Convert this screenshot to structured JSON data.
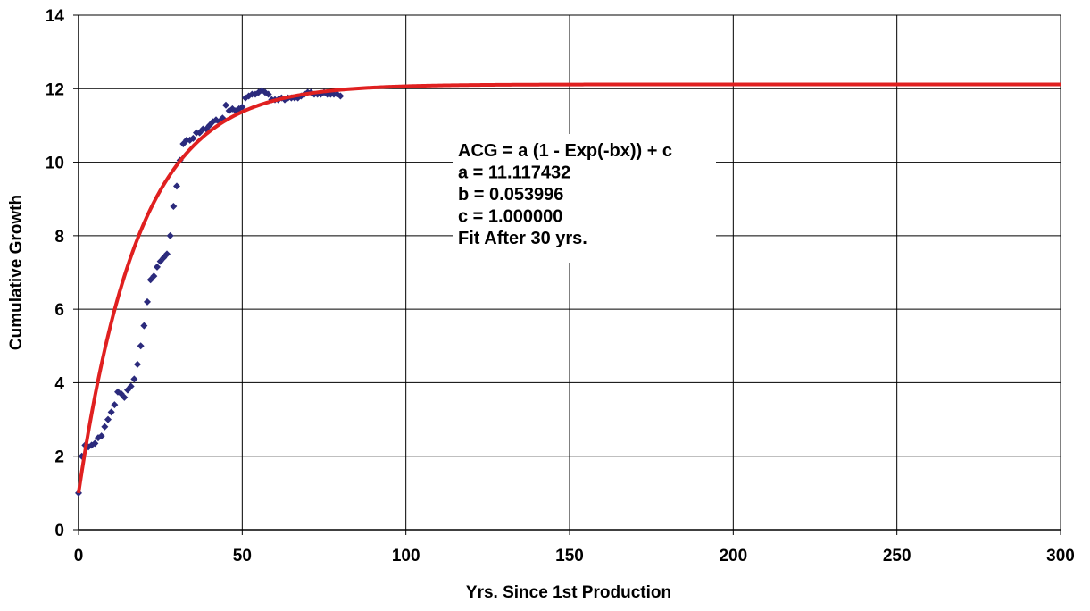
{
  "chart_data": {
    "type": "scatter",
    "xlabel": "Yrs. Since 1st Production",
    "ylabel": "Cumulative Growth",
    "xlim": [
      0,
      300
    ],
    "ylim": [
      0,
      14
    ],
    "xticks": [
      0,
      50,
      100,
      150,
      200,
      250,
      300
    ],
    "yticks": [
      0,
      2,
      4,
      6,
      8,
      10,
      12,
      14
    ],
    "grid": true,
    "annotation": [
      "ACG = a (1 - Exp(-bx)) + c",
      "a = 11.117432",
      "b = 0.053996",
      "c = 1.000000",
      "Fit After 30 yrs."
    ],
    "fit": {
      "a": 11.117432,
      "b": 0.053996,
      "c": 1.0,
      "color": "#e02020"
    },
    "series": [
      {
        "marker_color": "#2b2a7c",
        "x": [
          0,
          1,
          2,
          3,
          4,
          5,
          6,
          7,
          8,
          9,
          10,
          11,
          12,
          13,
          14,
          15,
          16,
          17,
          18,
          19,
          20,
          21,
          22,
          23,
          24,
          25,
          26,
          27,
          28,
          29,
          30,
          31,
          32,
          33,
          34,
          35,
          36,
          37,
          38,
          39,
          40,
          41,
          42,
          43,
          44,
          45,
          46,
          47,
          48,
          49,
          50,
          51,
          52,
          53,
          54,
          55,
          56,
          57,
          58,
          59,
          60,
          61,
          62,
          63,
          64,
          65,
          66,
          67,
          68,
          69,
          70,
          71,
          72,
          73,
          74,
          75,
          76,
          77,
          78,
          79,
          80
        ],
        "y": [
          1.0,
          2.0,
          2.3,
          2.25,
          2.3,
          2.35,
          2.5,
          2.55,
          2.8,
          3.0,
          3.2,
          3.4,
          3.75,
          3.7,
          3.6,
          3.8,
          3.9,
          4.1,
          4.5,
          5.0,
          5.55,
          6.2,
          6.8,
          6.9,
          7.15,
          7.3,
          7.4,
          7.5,
          8.0,
          8.8,
          9.35,
          10.05,
          10.5,
          10.6,
          10.6,
          10.65,
          10.8,
          10.8,
          10.9,
          10.9,
          11.0,
          11.1,
          11.15,
          11.1,
          11.2,
          11.55,
          11.4,
          11.45,
          11.4,
          11.45,
          11.5,
          11.75,
          11.8,
          11.85,
          11.85,
          11.9,
          11.95,
          11.9,
          11.85,
          11.7,
          11.7,
          11.7,
          11.75,
          11.7,
          11.75,
          11.75,
          11.75,
          11.75,
          11.8,
          11.85,
          11.9,
          11.9,
          11.85,
          11.85,
          11.85,
          11.9,
          11.85,
          11.85,
          11.85,
          11.85,
          11.8
        ]
      }
    ]
  }
}
